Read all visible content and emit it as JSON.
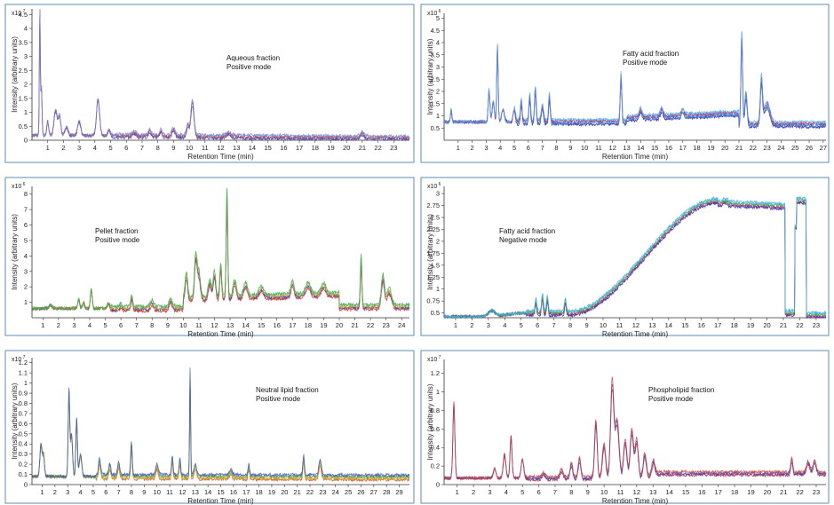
{
  "chart_data": [
    {
      "type": "line",
      "title": "",
      "annotation_lines": [
        "Aqueous fraction",
        "Positive mode"
      ],
      "multiplier_base": "x10",
      "multiplier_exp": "7",
      "xlabel": "Retention Time (min)",
      "ylabel": "Intensity (arbitrary units)",
      "xlim": [
        0,
        24
      ],
      "ylim": [
        0,
        4.7
      ],
      "xticks": [
        1,
        2,
        3,
        4,
        5,
        6,
        7,
        8,
        9,
        10,
        11,
        12,
        13,
        14,
        15,
        16,
        17,
        18,
        19,
        20,
        21,
        22,
        23
      ],
      "yticks": [
        0,
        0.5,
        1,
        1.5,
        2,
        2.5,
        3,
        3.5,
        4,
        4.5
      ],
      "ytick_labels": [
        "0",
        "0.5",
        "1",
        "1.5",
        "2",
        "2.5",
        "3",
        "3.5",
        "4",
        "4.5"
      ],
      "colors": [
        "#3344aa",
        "#aa3355",
        "#7788cc"
      ],
      "series": [
        {
          "name": "overlay",
          "baseline": 0.18,
          "tail": 0.08,
          "peaks": [
            [
              0.5,
              4.5,
              0.03
            ],
            [
              0.6,
              1.7,
              0.04
            ],
            [
              1.0,
              0.5,
              0.06
            ],
            [
              1.5,
              0.9,
              0.1
            ],
            [
              1.75,
              0.7,
              0.08
            ],
            [
              2.2,
              0.3,
              0.1
            ],
            [
              3.0,
              0.5,
              0.1
            ],
            [
              4.2,
              1.3,
              0.1
            ],
            [
              4.9,
              0.2,
              0.08
            ],
            [
              6.5,
              0.15,
              0.1
            ],
            [
              7.5,
              0.2,
              0.08
            ],
            [
              8.2,
              0.2,
              0.08
            ],
            [
              9.0,
              0.25,
              0.1
            ],
            [
              10.2,
              1.2,
              0.1
            ],
            [
              9.9,
              0.4,
              0.08
            ],
            [
              12.5,
              0.12,
              0.15
            ],
            [
              21.0,
              0.15,
              0.12
            ]
          ]
        }
      ]
    },
    {
      "type": "line",
      "title": "",
      "annotation_lines": [
        "Fatty acid fraction",
        "Positive mode"
      ],
      "multiplier_base": "x10",
      "multiplier_exp": "6",
      "xlabel": "Retention Time (min)",
      "ylabel": "Intensity (arbitrary units)",
      "xlim": [
        0,
        27.2
      ],
      "ylim": [
        0,
        5.2
      ],
      "xticks": [
        1,
        2,
        3,
        4,
        5,
        6,
        7,
        8,
        9,
        10,
        11,
        12,
        13,
        14,
        15,
        16,
        17,
        18,
        19,
        20,
        21,
        22,
        23,
        24,
        25,
        26,
        27
      ],
      "yticks": [
        0.5,
        1,
        1.5,
        2,
        2.5,
        3,
        3.5,
        4,
        4.5,
        5
      ],
      "ytick_labels": [
        "0.5",
        "1",
        "1.5",
        "2",
        "2.5",
        "3",
        "3.5",
        "4",
        "4.5",
        "5"
      ],
      "colors": [
        "#2222aa",
        "#3399dd",
        "#aa2266",
        "#55aaee"
      ],
      "series": [
        {
          "name": "overlay",
          "baseline": 0.75,
          "tail": 0.65,
          "ramp": [
            [
              13,
              0.9
            ],
            [
              21,
              1.1
            ]
          ],
          "peaks": [
            [
              0.5,
              0.5,
              0.05
            ],
            [
              3.2,
              1.3,
              0.06
            ],
            [
              3.8,
              3.0,
              0.05
            ],
            [
              3.5,
              0.8,
              0.08
            ],
            [
              4.2,
              0.5,
              0.1
            ],
            [
              5.0,
              0.5,
              0.08
            ],
            [
              5.5,
              0.8,
              0.06
            ],
            [
              6.1,
              1.0,
              0.06
            ],
            [
              6.5,
              1.3,
              0.06
            ],
            [
              7.0,
              0.6,
              0.08
            ],
            [
              7.5,
              1.0,
              0.06
            ],
            [
              12.6,
              1.8,
              0.06
            ],
            [
              14.0,
              0.3,
              0.1
            ],
            [
              15.5,
              0.3,
              0.1
            ],
            [
              17.0,
              0.2,
              0.1
            ],
            [
              21.2,
              3.5,
              0.06
            ],
            [
              21.5,
              1.2,
              0.08
            ],
            [
              22.6,
              1.7,
              0.08
            ],
            [
              23.0,
              0.8,
              0.2
            ]
          ]
        }
      ]
    },
    {
      "type": "line",
      "title": "",
      "annotation_lines": [
        "Pellet fraction",
        "Positive mode"
      ],
      "multiplier_base": "x10",
      "multiplier_exp": "6",
      "xlabel": "Retention Time (min)",
      "ylabel": "Intensity (arbitrary units)",
      "xlim": [
        0.3,
        24.5
      ],
      "ylim": [
        0,
        8.5
      ],
      "xticks": [
        1,
        2,
        3,
        4,
        5,
        6,
        7,
        8,
        9,
        10,
        11,
        12,
        13,
        14,
        15,
        16,
        17,
        18,
        19,
        20,
        21,
        22,
        23,
        24
      ],
      "yticks": [
        1,
        2,
        3,
        4,
        5,
        6,
        7,
        8
      ],
      "ytick_labels": [
        "1",
        "2",
        "3",
        "4",
        "5",
        "6",
        "7",
        "8"
      ],
      "colors": [
        "#cc3322",
        "#3344aa",
        "#ddaa22",
        "#33aa55"
      ],
      "series": [
        {
          "name": "overlay",
          "baseline": 0.6,
          "tail": 0.7,
          "ramp": [
            [
              10,
              1.2
            ],
            [
              20,
              1.5
            ]
          ],
          "peaks": [
            [
              1.5,
              0.2,
              0.1
            ],
            [
              3.3,
              0.6,
              0.06
            ],
            [
              3.6,
              0.4,
              0.06
            ],
            [
              4.1,
              1.2,
              0.06
            ],
            [
              5.2,
              0.3,
              0.08
            ],
            [
              6.0,
              0.2,
              0.08
            ],
            [
              6.7,
              0.7,
              0.06
            ],
            [
              8.0,
              0.4,
              0.1
            ],
            [
              9.2,
              0.5,
              0.1
            ],
            [
              10.2,
              1.5,
              0.08
            ],
            [
              10.8,
              2.5,
              0.08
            ],
            [
              11.0,
              1.5,
              0.1
            ],
            [
              11.7,
              1.0,
              0.1
            ],
            [
              12.0,
              1.5,
              0.08
            ],
            [
              12.4,
              2.0,
              0.06
            ],
            [
              12.8,
              6.5,
              0.05
            ],
            [
              13.3,
              1.0,
              0.1
            ],
            [
              14.0,
              0.8,
              0.12
            ],
            [
              15.0,
              0.5,
              0.15
            ],
            [
              17.0,
              0.8,
              0.1
            ],
            [
              18.0,
              0.7,
              0.15
            ],
            [
              19.0,
              0.6,
              0.15
            ],
            [
              21.4,
              3.0,
              0.05
            ],
            [
              22.8,
              1.8,
              0.1
            ],
            [
              23.2,
              1.0,
              0.15
            ]
          ]
        }
      ]
    },
    {
      "type": "line",
      "title": "",
      "annotation_lines": [
        "Fatty acid fraction",
        "Negative mode"
      ],
      "multiplier_base": "x10",
      "multiplier_exp": "6",
      "xlabel": "Retention Time (min)",
      "ylabel": "Intensity (arbitrary units)",
      "xlim": [
        0.3,
        23.6
      ],
      "ylim": [
        0.4,
        3.15
      ],
      "xticks": [
        1,
        2,
        3,
        4,
        5,
        6,
        7,
        8,
        9,
        10,
        11,
        12,
        13,
        14,
        15,
        16,
        17,
        18,
        19,
        20,
        21,
        22,
        23
      ],
      "yticks": [
        0.5,
        0.75,
        1,
        1.25,
        1.5,
        1.75,
        2,
        2.25,
        2.5,
        2.75,
        3
      ],
      "ytick_labels": [
        "0.5",
        "0.75",
        "1",
        "1.25",
        "1.5",
        "1.75",
        "2",
        "2.25",
        "2.5",
        "2.75",
        "3"
      ],
      "colors": [
        "#2222aa",
        "#aa2266",
        "#33bb44",
        "#44aaee"
      ],
      "series": [
        {
          "name": "overlay",
          "baseline": 0.42,
          "tail": 0.5,
          "special": "negative_mode",
          "peaks": [
            [
              3.2,
              0.12,
              0.2
            ],
            [
              5.9,
              0.25,
              0.05
            ],
            [
              6.3,
              0.35,
              0.05
            ],
            [
              6.6,
              0.3,
              0.05
            ],
            [
              7.7,
              0.25,
              0.05
            ]
          ]
        }
      ]
    },
    {
      "type": "line",
      "title": "",
      "annotation_lines": [
        "Neutral lipid fraction",
        "Positive mode"
      ],
      "multiplier_base": "x10",
      "multiplier_exp": "7",
      "xlabel": "Retention Time (min)",
      "ylabel": "Intensity (arbitrary units)",
      "xlim": [
        0.2,
        29.8
      ],
      "ylim": [
        0,
        1.25
      ],
      "xticks": [
        1,
        2,
        3,
        4,
        5,
        6,
        7,
        8,
        9,
        10,
        11,
        12,
        13,
        14,
        15,
        16,
        17,
        18,
        19,
        20,
        21,
        22,
        23,
        24,
        25,
        26,
        27,
        28,
        29
      ],
      "yticks": [
        0,
        0.1,
        0.2,
        0.3,
        0.4,
        0.5,
        0.6,
        0.7,
        0.8,
        0.9,
        1,
        1.1,
        1.2
      ],
      "ytick_labels": [
        "0",
        "0.1",
        "0.2",
        "0.3",
        "0.4",
        "0.5",
        "0.6",
        "0.7",
        "0.8",
        "0.9",
        "1",
        "1.1",
        "1.2"
      ],
      "colors": [
        "#cc5522",
        "#ddaa22",
        "#44aa44",
        "#4455bb"
      ],
      "series": [
        {
          "name": "overlay",
          "baseline": 0.08,
          "tail": 0.07,
          "peaks": [
            [
              0.9,
              0.3,
              0.08
            ],
            [
              1.1,
              0.2,
              0.08
            ],
            [
              3.1,
              0.8,
              0.06
            ],
            [
              3.3,
              0.4,
              0.08
            ],
            [
              3.7,
              0.55,
              0.06
            ],
            [
              4.0,
              0.2,
              0.1
            ],
            [
              5.5,
              0.15,
              0.08
            ],
            [
              6.3,
              0.1,
              0.08
            ],
            [
              7.0,
              0.12,
              0.08
            ],
            [
              8.0,
              0.3,
              0.06
            ],
            [
              10.0,
              0.1,
              0.1
            ],
            [
              11.2,
              0.18,
              0.06
            ],
            [
              11.8,
              0.15,
              0.06
            ],
            [
              12.6,
              0.97,
              0.04
            ],
            [
              13.0,
              0.1,
              0.1
            ],
            [
              15.8,
              0.05,
              0.1
            ],
            [
              17.2,
              0.1,
              0.06
            ],
            [
              21.5,
              0.18,
              0.06
            ],
            [
              22.8,
              0.14,
              0.1
            ]
          ]
        }
      ]
    },
    {
      "type": "line",
      "title": "",
      "annotation_lines": [
        "Phospholipid fraction",
        "Positive mode"
      ],
      "multiplier_base": "x10",
      "multiplier_exp": "7",
      "xlabel": "Retention Time (min)",
      "ylabel": "Intensity (arbitrary units)",
      "xlim": [
        0.2,
        23.6
      ],
      "ylim": [
        0,
        1.35
      ],
      "xticks": [
        1,
        2,
        3,
        4,
        5,
        6,
        7,
        8,
        9,
        10,
        11,
        12,
        13,
        14,
        15,
        16,
        17,
        18,
        19,
        20,
        21,
        22,
        23
      ],
      "yticks": [
        0,
        0.2,
        0.4,
        0.6,
        0.8,
        1,
        1.2
      ],
      "ytick_labels": [
        "0",
        "0.2",
        "0.4",
        "0.6",
        "0.8",
        "1",
        "1.2"
      ],
      "colors": [
        "#aa2255",
        "#3344aa",
        "#cc4444"
      ],
      "series": [
        {
          "name": "overlay",
          "baseline": 0.07,
          "tail": 0.12,
          "ramp": [
            [
              13,
              0.12
            ],
            [
              21,
              0.12
            ]
          ],
          "peaks": [
            [
              0.8,
              0.8,
              0.06
            ],
            [
              3.3,
              0.1,
              0.08
            ],
            [
              3.9,
              0.25,
              0.08
            ],
            [
              4.3,
              0.45,
              0.06
            ],
            [
              5.0,
              0.2,
              0.08
            ],
            [
              6.3,
              0.05,
              0.1
            ],
            [
              7.4,
              0.08,
              0.1
            ],
            [
              8.0,
              0.15,
              0.08
            ],
            [
              8.5,
              0.2,
              0.08
            ],
            [
              9.5,
              0.6,
              0.08
            ],
            [
              10.0,
              0.35,
              0.1
            ],
            [
              10.5,
              1.0,
              0.1
            ],
            [
              10.8,
              0.6,
              0.12
            ],
            [
              11.3,
              0.4,
              0.1
            ],
            [
              11.7,
              0.5,
              0.1
            ],
            [
              12.0,
              0.4,
              0.1
            ],
            [
              12.5,
              0.25,
              0.1
            ],
            [
              13.0,
              0.15,
              0.1
            ],
            [
              21.5,
              0.15,
              0.06
            ],
            [
              22.5,
              0.12,
              0.1
            ],
            [
              22.9,
              0.12,
              0.1
            ]
          ]
        }
      ]
    }
  ]
}
